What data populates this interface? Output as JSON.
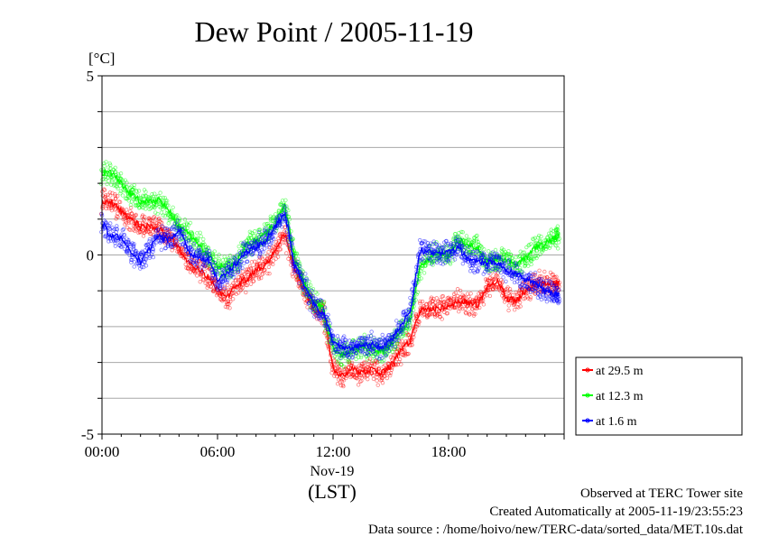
{
  "chart_data": {
    "type": "line",
    "title": "Dew Point / 2005-11-19",
    "ylabel": "[°C]",
    "xlabel": "(LST)",
    "ylim": [
      -5,
      5
    ],
    "xlim_hours": [
      0,
      24
    ],
    "yticks": [
      {
        "value": 5,
        "label": "5"
      },
      {
        "value": 0,
        "label": "0"
      },
      {
        "value": -5,
        "label": "-5"
      }
    ],
    "xticks": [
      {
        "hour": 0,
        "label": "00:00"
      },
      {
        "hour": 6,
        "label": "06:00"
      },
      {
        "hour": 12,
        "label": "12:00"
      },
      {
        "hour": 18,
        "label": "18:00"
      }
    ],
    "x_sublabel": "Nov-19",
    "grid": "horizontal, every 1 °C",
    "legend_position": "right, outside plot, lower",
    "x_hours": [
      0,
      0.5,
      1,
      1.5,
      2,
      2.5,
      3,
      3.5,
      4,
      4.5,
      5,
      5.5,
      6,
      6.5,
      7,
      7.5,
      8,
      8.5,
      9,
      9.5,
      10,
      10.5,
      11,
      11.5,
      12,
      12.5,
      13,
      13.5,
      14,
      14.5,
      15,
      15.5,
      16,
      16.5,
      17,
      17.5,
      18,
      18.5,
      19,
      19.5,
      20,
      20.5,
      21,
      21.5,
      22,
      22.5,
      23,
      23.5
    ],
    "series": [
      {
        "name": "at 29.5 m",
        "color": "#ff0000",
        "values": [
          1.5,
          1.5,
          1.2,
          1.0,
          0.8,
          0.8,
          0.7,
          0.5,
          0.2,
          -0.2,
          -0.4,
          -0.6,
          -1.0,
          -1.2,
          -0.8,
          -0.7,
          -0.4,
          -0.3,
          0.1,
          0.6,
          -0.4,
          -1.0,
          -1.5,
          -1.6,
          -3.2,
          -3.4,
          -3.2,
          -3.3,
          -3.2,
          -3.3,
          -3.1,
          -2.7,
          -2.4,
          -1.6,
          -1.5,
          -1.5,
          -1.4,
          -1.3,
          -1.3,
          -1.4,
          -0.9,
          -0.7,
          -1.2,
          -1.3,
          -1.0,
          -0.8,
          -0.8,
          -0.8
        ]
      },
      {
        "name": "at 12.3 m",
        "color": "#00ff00",
        "values": [
          2.3,
          2.3,
          2.0,
          1.7,
          1.5,
          1.5,
          1.5,
          1.2,
          0.8,
          0.6,
          0.3,
          0.0,
          -0.3,
          -0.4,
          -0.2,
          0.3,
          0.4,
          0.6,
          0.9,
          1.4,
          -0.1,
          -0.8,
          -1.3,
          -1.5,
          -2.6,
          -2.8,
          -2.6,
          -2.6,
          -2.6,
          -2.7,
          -2.5,
          -2.1,
          -1.8,
          -0.4,
          -0.1,
          0.1,
          0.0,
          0.4,
          0.3,
          0.2,
          -0.2,
          -0.1,
          -0.1,
          -0.3,
          -0.1,
          0.2,
          0.3,
          0.5
        ]
      },
      {
        "name": "at 1.6 m",
        "color": "#0000ff",
        "values": [
          0.9,
          0.5,
          0.5,
          0.1,
          -0.2,
          0.2,
          0.5,
          0.4,
          0.7,
          0.1,
          -0.1,
          -0.1,
          -0.7,
          -0.5,
          -0.2,
          0.1,
          0.2,
          0.4,
          0.8,
          1.2,
          -0.3,
          -0.8,
          -1.4,
          -1.6,
          -2.4,
          -2.6,
          -2.6,
          -2.5,
          -2.5,
          -2.6,
          -2.4,
          -2.0,
          -1.6,
          0.1,
          0.1,
          0.0,
          0.1,
          0.2,
          -0.1,
          -0.2,
          -0.2,
          -0.2,
          -0.4,
          -0.5,
          -0.7,
          -0.8,
          -1.0,
          -1.1
        ]
      }
    ]
  },
  "footer": {
    "line1": "Observed at TERC Tower site",
    "line2": "Created Automatically at 2005-11-19/23:55:23",
    "line3": "Data source : /home/hoivo/new/TERC-data/sorted_data/MET.10s.dat"
  }
}
